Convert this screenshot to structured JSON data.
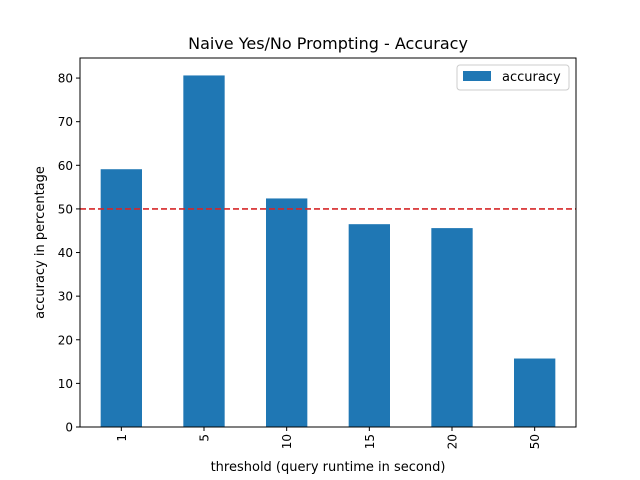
{
  "chart_data": {
    "type": "bar",
    "title": "Naive Yes/No Prompting - Accuracy",
    "xlabel": "threshold (query runtime in second)",
    "ylabel": "accuracy in percentage",
    "categories": [
      "1",
      "5",
      "10",
      "15",
      "20",
      "50"
    ],
    "series": [
      {
        "name": "accuracy",
        "values": [
          59.1,
          80.6,
          52.4,
          46.5,
          45.6,
          15.7
        ],
        "color": "#1f77b4"
      }
    ],
    "ylim": [
      0,
      84.6
    ],
    "yticks": [
      0,
      10,
      20,
      30,
      40,
      50,
      60,
      70,
      80
    ],
    "reference_line": {
      "y": 50,
      "color": "#d62728",
      "style": "dashed"
    },
    "legend": {
      "position": "top-right"
    },
    "grid": false
  }
}
